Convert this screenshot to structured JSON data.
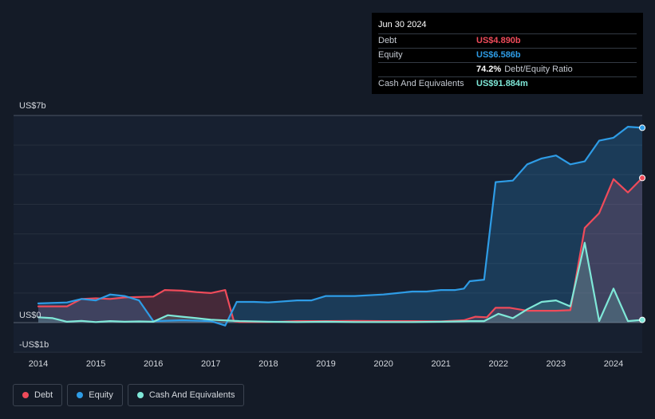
{
  "tooltip": {
    "date": "Jun 30 2024",
    "rows": [
      {
        "label": "Debt",
        "value": "US$4.890b",
        "color": "#ef4b5a",
        "suffix": ""
      },
      {
        "label": "Equity",
        "value": "US$6.586b",
        "color": "#2e9ce6",
        "suffix": ""
      },
      {
        "label": "",
        "value": "74.2%",
        "color": "#ffffff",
        "suffix": "Debt/Equity Ratio"
      },
      {
        "label": "Cash And Equivalents",
        "value": "US$91.884m",
        "color": "#7fe8d8",
        "suffix": ""
      }
    ]
  },
  "legend": [
    {
      "label": "Debt",
      "color": "#ef4b5a"
    },
    {
      "label": "Equity",
      "color": "#2e9ce6"
    },
    {
      "label": "Cash And Equivalents",
      "color": "#7fe8d8"
    }
  ],
  "chart_data": {
    "type": "area",
    "y_unit": "US$b",
    "ylim": [
      -1,
      7
    ],
    "y_tick_labels": [
      {
        "value": 7,
        "label": "US$7b"
      },
      {
        "value": 0,
        "label": "US$0"
      },
      {
        "value": -1,
        "label": "-US$1b"
      }
    ],
    "xlim": [
      2014.0,
      2024.5
    ],
    "x_tick_labels": [
      "2014",
      "2015",
      "2016",
      "2017",
      "2018",
      "2019",
      "2020",
      "2021",
      "2022",
      "2023",
      "2024"
    ],
    "grid": true,
    "legend_position": "bottom-left",
    "series": [
      {
        "name": "Debt",
        "color": "#ef4b5a",
        "points": [
          [
            2014.0,
            0.55
          ],
          [
            2014.5,
            0.55
          ],
          [
            2014.75,
            0.8
          ],
          [
            2015.0,
            0.82
          ],
          [
            2015.25,
            0.8
          ],
          [
            2015.5,
            0.85
          ],
          [
            2016.0,
            0.88
          ],
          [
            2016.2,
            1.1
          ],
          [
            2016.5,
            1.08
          ],
          [
            2016.75,
            1.03
          ],
          [
            2017.0,
            1.0
          ],
          [
            2017.25,
            1.1
          ],
          [
            2017.4,
            0.05
          ],
          [
            2017.5,
            0.02
          ],
          [
            2018.0,
            0.02
          ],
          [
            2018.5,
            0.05
          ],
          [
            2019.0,
            0.05
          ],
          [
            2019.5,
            0.06
          ],
          [
            2020.0,
            0.05
          ],
          [
            2020.5,
            0.05
          ],
          [
            2021.0,
            0.04
          ],
          [
            2021.4,
            0.08
          ],
          [
            2021.6,
            0.2
          ],
          [
            2021.8,
            0.18
          ],
          [
            2021.95,
            0.5
          ],
          [
            2022.2,
            0.5
          ],
          [
            2022.5,
            0.4
          ],
          [
            2023.0,
            0.4
          ],
          [
            2023.25,
            0.42
          ],
          [
            2023.5,
            3.2
          ],
          [
            2023.75,
            3.7
          ],
          [
            2024.0,
            4.85
          ],
          [
            2024.25,
            4.4
          ],
          [
            2024.5,
            4.89
          ]
        ]
      },
      {
        "name": "Equity",
        "color": "#2e9ce6",
        "points": [
          [
            2014.0,
            0.65
          ],
          [
            2014.5,
            0.68
          ],
          [
            2014.75,
            0.8
          ],
          [
            2015.0,
            0.75
          ],
          [
            2015.25,
            0.95
          ],
          [
            2015.5,
            0.9
          ],
          [
            2015.75,
            0.75
          ],
          [
            2016.0,
            0.05
          ],
          [
            2016.5,
            0.08
          ],
          [
            2017.0,
            0.05
          ],
          [
            2017.25,
            -0.1
          ],
          [
            2017.45,
            0.7
          ],
          [
            2017.75,
            0.7
          ],
          [
            2018.0,
            0.68
          ],
          [
            2018.5,
            0.75
          ],
          [
            2018.75,
            0.75
          ],
          [
            2019.0,
            0.9
          ],
          [
            2019.5,
            0.9
          ],
          [
            2020.0,
            0.95
          ],
          [
            2020.25,
            1.0
          ],
          [
            2020.5,
            1.05
          ],
          [
            2020.75,
            1.05
          ],
          [
            2021.0,
            1.1
          ],
          [
            2021.25,
            1.1
          ],
          [
            2021.4,
            1.15
          ],
          [
            2021.5,
            1.4
          ],
          [
            2021.75,
            1.45
          ],
          [
            2021.95,
            4.75
          ],
          [
            2022.25,
            4.8
          ],
          [
            2022.5,
            5.35
          ],
          [
            2022.75,
            5.55
          ],
          [
            2023.0,
            5.65
          ],
          [
            2023.25,
            5.35
          ],
          [
            2023.5,
            5.45
          ],
          [
            2023.75,
            6.15
          ],
          [
            2024.0,
            6.25
          ],
          [
            2024.25,
            6.62
          ],
          [
            2024.5,
            6.586
          ]
        ]
      },
      {
        "name": "Cash And Equivalents",
        "color": "#7fe8d8",
        "points": [
          [
            2014.0,
            0.18
          ],
          [
            2014.25,
            0.15
          ],
          [
            2014.5,
            0.03
          ],
          [
            2014.75,
            0.06
          ],
          [
            2015.0,
            0.02
          ],
          [
            2015.25,
            0.05
          ],
          [
            2015.5,
            0.03
          ],
          [
            2015.75,
            0.04
          ],
          [
            2016.0,
            0.03
          ],
          [
            2016.25,
            0.25
          ],
          [
            2016.5,
            0.2
          ],
          [
            2016.75,
            0.15
          ],
          [
            2017.0,
            0.1
          ],
          [
            2017.5,
            0.05
          ],
          [
            2018.0,
            0.03
          ],
          [
            2018.5,
            0.02
          ],
          [
            2019.0,
            0.03
          ],
          [
            2019.5,
            0.02
          ],
          [
            2020.0,
            0.02
          ],
          [
            2020.5,
            0.02
          ],
          [
            2021.0,
            0.03
          ],
          [
            2021.5,
            0.05
          ],
          [
            2021.75,
            0.05
          ],
          [
            2022.0,
            0.3
          ],
          [
            2022.25,
            0.15
          ],
          [
            2022.5,
            0.45
          ],
          [
            2022.75,
            0.7
          ],
          [
            2023.0,
            0.75
          ],
          [
            2023.25,
            0.55
          ],
          [
            2023.5,
            2.7
          ],
          [
            2023.75,
            0.05
          ],
          [
            2024.0,
            1.15
          ],
          [
            2024.25,
            0.05
          ],
          [
            2024.5,
            0.092
          ]
        ]
      }
    ]
  }
}
